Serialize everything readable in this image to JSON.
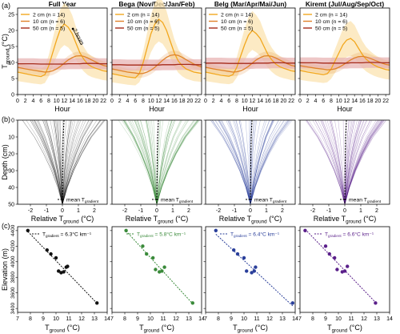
{
  "figure": {
    "panel_letters": [
      "(a)",
      "(b)",
      "(c)"
    ],
    "colors": {
      "cm2": "#f2a71e",
      "cm2_band": "#fbe3b0",
      "cm10": "#e0822a",
      "cm50": "#a52a1a",
      "cm50_band": "#e8b4b4",
      "full": "#111111",
      "bega": "#3a8a3a",
      "belg": "#2a3f9a",
      "kiremt": "#5a1f8a"
    }
  },
  "chart_data": [
    {
      "type": "line",
      "row": "a",
      "panels": [
        "Full Year",
        "Bega (Nov/Dec/Jan/Feb)",
        "Belg (Mar/Apr/Mai/Jun)",
        "Kiremt (Jul/Aug/Sep/Oct)"
      ],
      "xlabel": "Hour",
      "ylabel_main": "T",
      "ylabel_sub": "ground",
      "ylabel_unit": " (°C)",
      "xlim": [
        0,
        23
      ],
      "ylim": [
        0,
        27
      ],
      "xticks": [
        0,
        2,
        4,
        6,
        8,
        10,
        12,
        14,
        16,
        18,
        20,
        22
      ],
      "yticks": [
        0,
        5,
        10,
        15,
        20,
        25
      ],
      "legend": [
        "2 cm (n = 14)",
        "10 cm (n = 6)",
        "50 cm (n = 5)"
      ],
      "annotation": "2 hours",
      "x": [
        0,
        2,
        4,
        6,
        7,
        8,
        9,
        10,
        11,
        12,
        13,
        14,
        15,
        16,
        17,
        18,
        19,
        20,
        21,
        22,
        23
      ],
      "series": [
        {
          "values": [
            [
              7,
              6.5,
              6,
              5.6,
              6.2,
              9,
              13,
              17,
              20.5,
              22,
              21,
              19,
              16,
              13,
              11,
              9.5,
              8.7,
              8.2,
              7.8,
              7.4,
              7.2
            ],
            [
              6.5,
              6,
              5.5,
              5.2,
              6.5,
              10,
              14.5,
              19,
              22,
              23.5,
              22.5,
              20,
              16.5,
              13,
              10.5,
              9,
              8,
              7.5,
              7,
              6.8,
              6.6
            ],
            [
              7,
              6.5,
              6,
              5.7,
              6.2,
              8.5,
              12,
              15.5,
              18.5,
              20,
              19,
              17.5,
              15,
              12.5,
              10.8,
              9.5,
              8.7,
              8.2,
              7.8,
              7.4,
              7.2
            ],
            [
              7.5,
              7,
              6.6,
              6.2,
              6.5,
              8,
              10.5,
              13,
              15.5,
              17,
              17.5,
              16.5,
              14.5,
              12.5,
              11,
              10,
              9.2,
              8.6,
              8.2,
              7.8,
              7.6
            ]
          ]
        },
        {
          "values": [
            [
              8.5,
              8,
              7.6,
              7.2,
              7,
              7.1,
              7.4,
              8,
              8.8,
              9.8,
              10.8,
              11.5,
              12,
              12.1,
              11.9,
              11.4,
              10.8,
              10.2,
              9.6,
              9.1,
              8.8
            ],
            [
              8,
              7.5,
              7,
              6.7,
              6.5,
              6.6,
              7,
              7.6,
              8.5,
              9.6,
              10.7,
              11.6,
              12.2,
              12.4,
              12.2,
              11.6,
              10.9,
              10.2,
              9.5,
              9,
              8.6
            ],
            [
              8.5,
              8,
              7.6,
              7.2,
              7,
              7.1,
              7.4,
              8,
              8.8,
              9.8,
              10.8,
              11.5,
              12,
              12.1,
              11.9,
              11.4,
              10.8,
              10.2,
              9.6,
              9.1,
              8.8
            ],
            [
              9,
              8.6,
              8.2,
              7.9,
              7.7,
              7.8,
              8,
              8.5,
              9.2,
              10,
              10.8,
              11.4,
              11.8,
              11.9,
              11.7,
              11.3,
              10.8,
              10.3,
              9.8,
              9.4,
              9.2
            ]
          ]
        },
        {
          "values": [
            [
              9.6,
              9.6,
              9.6,
              9.5,
              9.5,
              9.5,
              9.5,
              9.5,
              9.5,
              9.5,
              9.6,
              9.6,
              9.6,
              9.6,
              9.7,
              9.7,
              9.7,
              9.7,
              9.6,
              9.6,
              9.6
            ],
            [
              9.3,
              9.3,
              9.2,
              9.2,
              9.2,
              9.2,
              9.2,
              9.2,
              9.2,
              9.2,
              9.3,
              9.3,
              9.3,
              9.3,
              9.4,
              9.4,
              9.4,
              9.4,
              9.3,
              9.3,
              9.3
            ],
            [
              9.8,
              9.8,
              9.8,
              9.7,
              9.7,
              9.7,
              9.7,
              9.7,
              9.7,
              9.7,
              9.8,
              9.8,
              9.8,
              9.8,
              9.9,
              9.9,
              9.9,
              9.9,
              9.8,
              9.8,
              9.8
            ],
            [
              9.9,
              9.9,
              9.9,
              9.8,
              9.8,
              9.8,
              9.8,
              9.8,
              9.8,
              9.8,
              9.9,
              9.9,
              9.9,
              9.9,
              10,
              10,
              10,
              10,
              9.9,
              9.9,
              9.9
            ]
          ]
        }
      ]
    },
    {
      "type": "line",
      "row": "b",
      "xlabel_main": "Relative T",
      "xlabel_sub": "ground",
      "xlabel_unit": " (°C)",
      "ylabel": "Depth (cm)",
      "xlim": [
        -2.8,
        2.8
      ],
      "ylim": [
        0,
        50
      ],
      "xticks": [
        -2,
        -1,
        0,
        1,
        2
      ],
      "yticks": [
        0,
        10,
        20,
        30,
        40,
        50
      ],
      "legend_main": "mean T",
      "legend_sub": "gradient",
      "depths": [
        0,
        10,
        20,
        30,
        40,
        50
      ],
      "mean_profile": [
        0.1,
        0.05,
        0.03,
        0.02,
        0.01,
        0
      ],
      "spread": [
        2.6,
        1.8,
        1.2,
        0.7,
        0.3,
        0
      ]
    },
    {
      "type": "scatter",
      "row": "c",
      "xlabel_main": "T",
      "xlabel_sub": "ground",
      "xlabel_unit": " (°C)",
      "ylabel": "Elevation (m)",
      "xlim": [
        7,
        14
      ],
      "ylim": [
        3350,
        4450
      ],
      "xticks": [
        7,
        8,
        9,
        10,
        11,
        12,
        13,
        14
      ],
      "yticks": [
        3400,
        3600,
        3800,
        4000,
        4200,
        4400
      ],
      "legend_main": "T",
      "legend_sub": "gradient",
      "panels": [
        {
          "gradient_label": " = 6.3°C km⁻¹",
          "x": [
            7.8,
            9.3,
            9.6,
            10.0,
            10.2,
            10.4,
            10.6,
            10.8,
            10.9,
            13.2
          ],
          "y": [
            4400,
            4150,
            4100,
            4050,
            3880,
            3860,
            3870,
            3930,
            3940,
            3470
          ]
        },
        {
          "gradient_label": " = 5.8°C km⁻¹",
          "x": [
            8.1,
            9.4,
            9.7,
            10.2,
            10.4,
            10.7,
            10.9,
            11.1,
            13.3
          ],
          "y": [
            4400,
            4200,
            4100,
            4050,
            3900,
            3870,
            3880,
            3930,
            3470
          ]
        },
        {
          "gradient_label": " = 6.4°C km⁻¹",
          "x": [
            7.8,
            9.2,
            9.5,
            10.0,
            10.2,
            10.6,
            10.8,
            10.9,
            13.8
          ],
          "y": [
            4400,
            4150,
            4100,
            4050,
            3880,
            3860,
            3880,
            3930,
            3470
          ]
        },
        {
          "gradient_label": " = 6.6°C km⁻¹",
          "x": [
            7.4,
            9.0,
            9.3,
            9.7,
            9.9,
            10.3,
            10.5,
            10.7,
            12.9
          ],
          "y": [
            4400,
            4200,
            4100,
            4050,
            3900,
            3870,
            3880,
            3940,
            3470
          ]
        }
      ]
    }
  ]
}
